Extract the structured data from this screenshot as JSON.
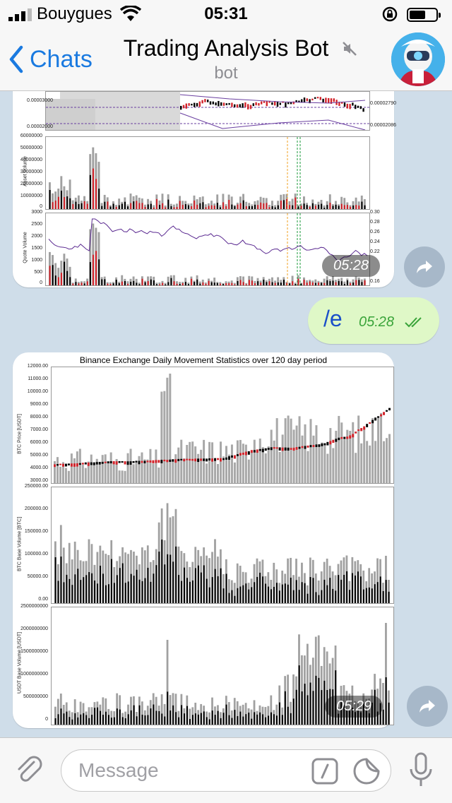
{
  "status": {
    "carrier": "Bouygues",
    "time": "05:31"
  },
  "nav": {
    "back_label": "Chats",
    "title": "Trading Analysis Bot",
    "subtitle": "bot"
  },
  "messages": [
    {
      "type": "image",
      "time": "05:28",
      "chart": {
        "price_labels": [
          "0.00003000",
          "0.00002000"
        ],
        "right_labels": [
          "0.00002790",
          "0.00002086"
        ],
        "panel2_ylabel": "Asset Volume",
        "panel2_ticks": [
          "60000000",
          "50000000",
          "40000000",
          "30000000",
          "20000000",
          "10000000",
          "0"
        ],
        "panel3_ylabel": "Quote Volume",
        "panel3_ticks": [
          "3000",
          "2500",
          "2000",
          "1500",
          "1000",
          "500",
          "0"
        ],
        "panel3_right_ticks": [
          "0.30",
          "0.28",
          "0.26",
          "0.24",
          "0.22",
          "0.16"
        ]
      }
    },
    {
      "type": "text",
      "text": "/e",
      "time": "05:28"
    },
    {
      "type": "image",
      "time": "05:29",
      "chart": {
        "title": "Binance Exchange Daily Movement Statistics over 120 day period",
        "panel1_ylabel": "BTC Price [USDT]",
        "panel1_ticks": [
          "12000.00",
          "11000.00",
          "10000.00",
          "9000.00",
          "8000.00",
          "7000.00",
          "6000.00",
          "5000.00",
          "4000.00",
          "3000.00"
        ],
        "panel2_ylabel": "BTC Base Volume [BTC]",
        "panel2_ticks": [
          "250000.00",
          "200000.00",
          "150000.00",
          "100000.00",
          "50000.00",
          "0.00"
        ],
        "panel3_ylabel": "USDT Base Volume [USDT]",
        "panel3_ticks": [
          "2500000000",
          "2000000000",
          "1500000000",
          "1000000000",
          "500000000",
          "0"
        ]
      }
    }
  ],
  "input": {
    "placeholder": "Message"
  }
}
